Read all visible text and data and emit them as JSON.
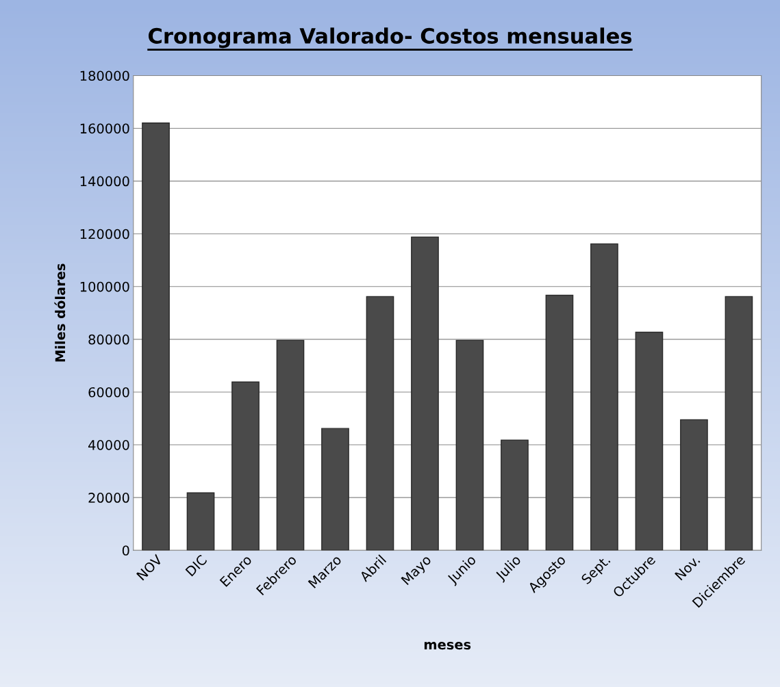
{
  "chart_data": {
    "type": "bar",
    "title": "Cronograma Valorado- Costos mensuales",
    "xlabel": "meses",
    "ylabel": "Miles dólares",
    "categories": [
      "NOV",
      "DIC",
      "Enero",
      "Febrero",
      "Marzo",
      "Abril",
      "Mayo",
      "Junio",
      "Julio",
      "Agosto",
      "Sept.",
      "Octubre",
      "Nov.",
      "Diciembre"
    ],
    "values": [
      162000,
      21800,
      63800,
      79600,
      46200,
      96200,
      118800,
      79600,
      41800,
      96700,
      116200,
      82700,
      49500,
      96200
    ],
    "color": "#4a4a4a",
    "ylim": [
      0,
      180000
    ],
    "yticks": [
      0,
      20000,
      40000,
      60000,
      80000,
      100000,
      120000,
      140000,
      160000,
      180000
    ],
    "grid": "y",
    "legend": false
  }
}
